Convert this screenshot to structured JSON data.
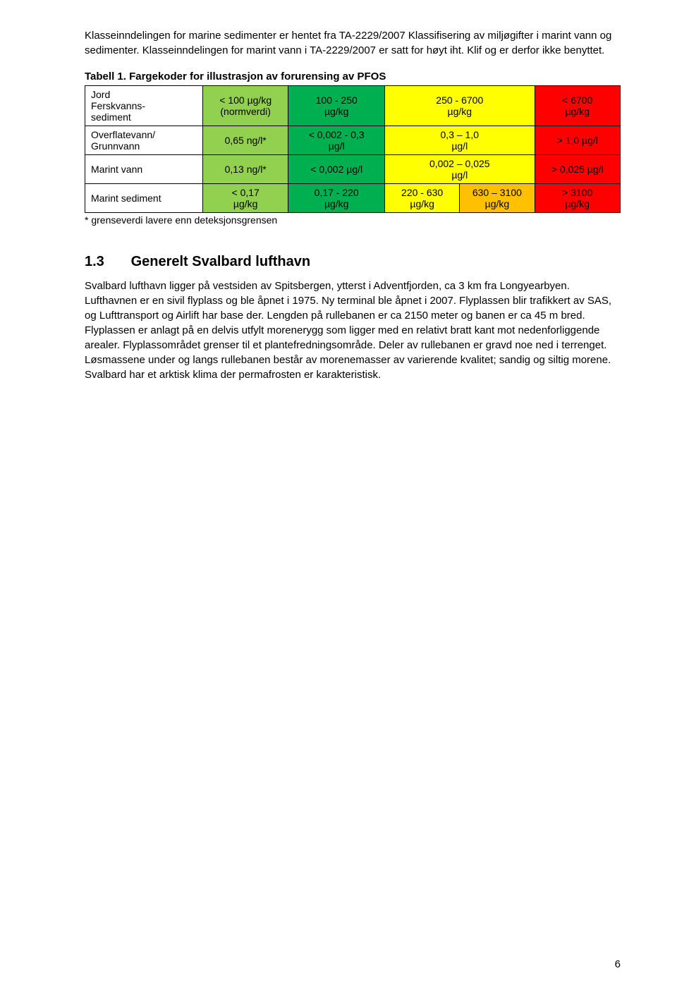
{
  "intro": "Klasseinndelingen for marine sedimenter er hentet fra TA-2229/2007 Klassifisering av miljøgifter i marint vann og sedimenter. Klasseinndelingen for marint vann i TA-2229/2007 er satt for høyt iht. Klif og er derfor ikke benyttet.",
  "table": {
    "captionLabel": "Tabell 1.",
    "captionText": "Fargekoder for illustrasjon av forurensing av PFOS",
    "rows": [
      {
        "label": "Jord\nFerskvanns-\nsediment",
        "cells": [
          {
            "text": "< 100 µg/kg\n(normverdi)",
            "bg": "#92d050",
            "span": 1
          },
          {
            "text": "100 - 250\nµg/kg",
            "bg": "#00b050",
            "span": 1
          },
          {
            "text": "250 - 6700\nµg/kg",
            "bg": "#ffff00",
            "span": 2
          },
          {
            "text": "< 6700\nµg/kg",
            "bg": "#ff0000",
            "span": 1
          }
        ]
      },
      {
        "label": "Overflatevann/\nGrunnvann",
        "cells": [
          {
            "text": "0,65 ng/l*",
            "bg": "#92d050",
            "span": 1
          },
          {
            "text": "< 0,002 - 0,3\nµg/l",
            "bg": "#00b050",
            "span": 1
          },
          {
            "text": "0,3 – 1,0\nµg/l",
            "bg": "#ffff00",
            "span": 2
          },
          {
            "text": "> 1,0 µg/l",
            "bg": "#ff0000",
            "span": 1
          }
        ]
      },
      {
        "label": "Marint vann",
        "cells": [
          {
            "text": "0,13 ng/l*",
            "bg": "#92d050",
            "span": 1
          },
          {
            "text": "< 0,002 µg/l",
            "bg": "#00b050",
            "span": 1
          },
          {
            "text": "0,002 – 0,025\nµg/l",
            "bg": "#ffff00",
            "span": 2
          },
          {
            "text": "> 0,025 µg/l",
            "bg": "#ff0000",
            "span": 1
          }
        ]
      },
      {
        "label": "Marint sediment",
        "cells": [
          {
            "text": "< 0,17\nµg/kg",
            "bg": "#92d050",
            "span": 1
          },
          {
            "text": "0,17 - 220\nµg/kg",
            "bg": "#00b050",
            "span": 1
          },
          {
            "text": "220 - 630\nµg/kg",
            "bg": "#ffff00",
            "span": 1
          },
          {
            "text": "630 – 3100\nµg/kg",
            "bg": "#ffc000",
            "span": 1
          },
          {
            "text": "> 3100\nµg/kg",
            "bg": "#ff0000",
            "span": 1
          }
        ]
      }
    ],
    "colWidths": [
      "22%",
      "16%",
      "18%",
      "14%",
      "14%",
      "16%"
    ],
    "footnote": "* grenseverdi lavere enn deteksjonsgrensen"
  },
  "section": {
    "number": "1.3",
    "title": "Generelt Svalbard lufthavn",
    "body": "Svalbard lufthavn ligger på vestsiden av Spitsbergen, ytterst i Adventfjorden, ca 3 km fra Longyearbyen. Lufthavnen er en sivil flyplass og ble åpnet i 1975. Ny terminal ble åpnet i 2007. Flyplassen blir trafikkert av SAS, og Lufttransport og Airlift har base der. Lengden på rullebanen er ca 2150 meter og banen er ca 45 m bred. Flyplassen er anlagt på en delvis utfylt morenerygg som ligger med en relativt bratt kant mot nedenforliggende arealer. Flyplassområdet grenser til et plantefredningsområde. Deler av rullebanen er gravd noe ned i terrenget. Løsmassene under og langs rullebanen består av morenemasser av varierende kvalitet; sandig og siltig morene. Svalbard har et arktisk klima der permafrosten er karakteristisk."
  },
  "pageNumber": "6"
}
